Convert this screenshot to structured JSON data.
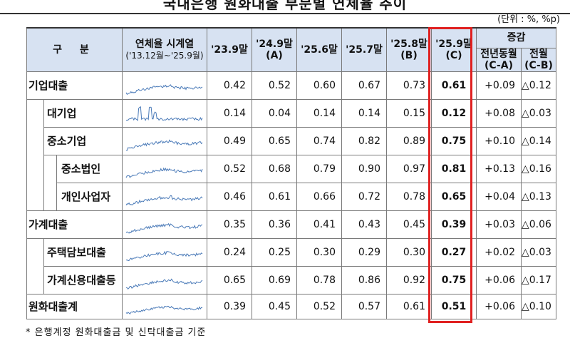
{
  "title": "국내은행 원화대출 부문별 연체율 추이",
  "unit": "(단위 : %, %p)",
  "headers": {
    "category": "구  분",
    "series_line1": "연체율 시계열",
    "series_line2": "('13.12월~'25.9월)",
    "c1": "'23.9말",
    "c2_line1": "'24.9말",
    "c2_line2": "(A)",
    "c3": "'25.6말",
    "c4": "'25.7말",
    "c5_line1": "'25.8말",
    "c5_line2": "(B)",
    "c6_line1": "'25.9말",
    "c6_line2": "(C)",
    "change": "증감",
    "yoy_line1": "전년동월",
    "yoy_line2": "(C-A)",
    "mom_line1": "전월",
    "mom_line2": "(C-B)"
  },
  "rows": [
    {
      "name": "기업대출",
      "level": 1,
      "v1": "0.42",
      "v2": "0.52",
      "v3": "0.60",
      "v4": "0.67",
      "v5": "0.73",
      "v6": "0.61",
      "yoy": "+0.09",
      "mom": "△0.12"
    },
    {
      "name": "대기업",
      "level": 2,
      "v1": "0.14",
      "v2": "0.04",
      "v3": "0.14",
      "v4": "0.14",
      "v5": "0.15",
      "v6": "0.12",
      "yoy": "+0.08",
      "mom": "△0.03"
    },
    {
      "name": "중소기업",
      "level": 2,
      "v1": "0.49",
      "v2": "0.65",
      "v3": "0.74",
      "v4": "0.82",
      "v5": "0.89",
      "v6": "0.75",
      "yoy": "+0.10",
      "mom": "△0.14"
    },
    {
      "name": "중소법인",
      "level": 3,
      "v1": "0.52",
      "v2": "0.68",
      "v3": "0.79",
      "v4": "0.90",
      "v5": "0.97",
      "v6": "0.81",
      "yoy": "+0.13",
      "mom": "△0.16"
    },
    {
      "name": "개인사업자",
      "level": 3,
      "v1": "0.46",
      "v2": "0.61",
      "v3": "0.66",
      "v4": "0.72",
      "v5": "0.78",
      "v6": "0.65",
      "yoy": "+0.04",
      "mom": "△0.13"
    },
    {
      "name": "가계대출",
      "level": 1,
      "v1": "0.35",
      "v2": "0.36",
      "v3": "0.41",
      "v4": "0.43",
      "v5": "0.45",
      "v6": "0.39",
      "yoy": "+0.03",
      "mom": "△0.06"
    },
    {
      "name": "주택담보대출",
      "level": 2,
      "v1": "0.24",
      "v2": "0.25",
      "v3": "0.30",
      "v4": "0.29",
      "v5": "0.30",
      "v6": "0.27",
      "yoy": "+0.02",
      "mom": "△0.03"
    },
    {
      "name": "가계신용대출등",
      "level": 2,
      "v1": "0.65",
      "v2": "0.69",
      "v3": "0.78",
      "v4": "0.86",
      "v5": "0.92",
      "v6": "0.75",
      "yoy": "+0.06",
      "mom": "△0.17"
    },
    {
      "name": "원화대출계",
      "level": 1,
      "v1": "0.39",
      "v2": "0.45",
      "v3": "0.52",
      "v4": "0.57",
      "v5": "0.61",
      "v6": "0.51",
      "yoy": "+0.06",
      "mom": "△0.10"
    }
  ],
  "note": "* 은행계정 원화대출금 및 신탁대출금 기준",
  "colors": {
    "header_bg": "#d7e2f2",
    "highlight_border": "#e02020",
    "sparkline": "#4a7ab8"
  }
}
